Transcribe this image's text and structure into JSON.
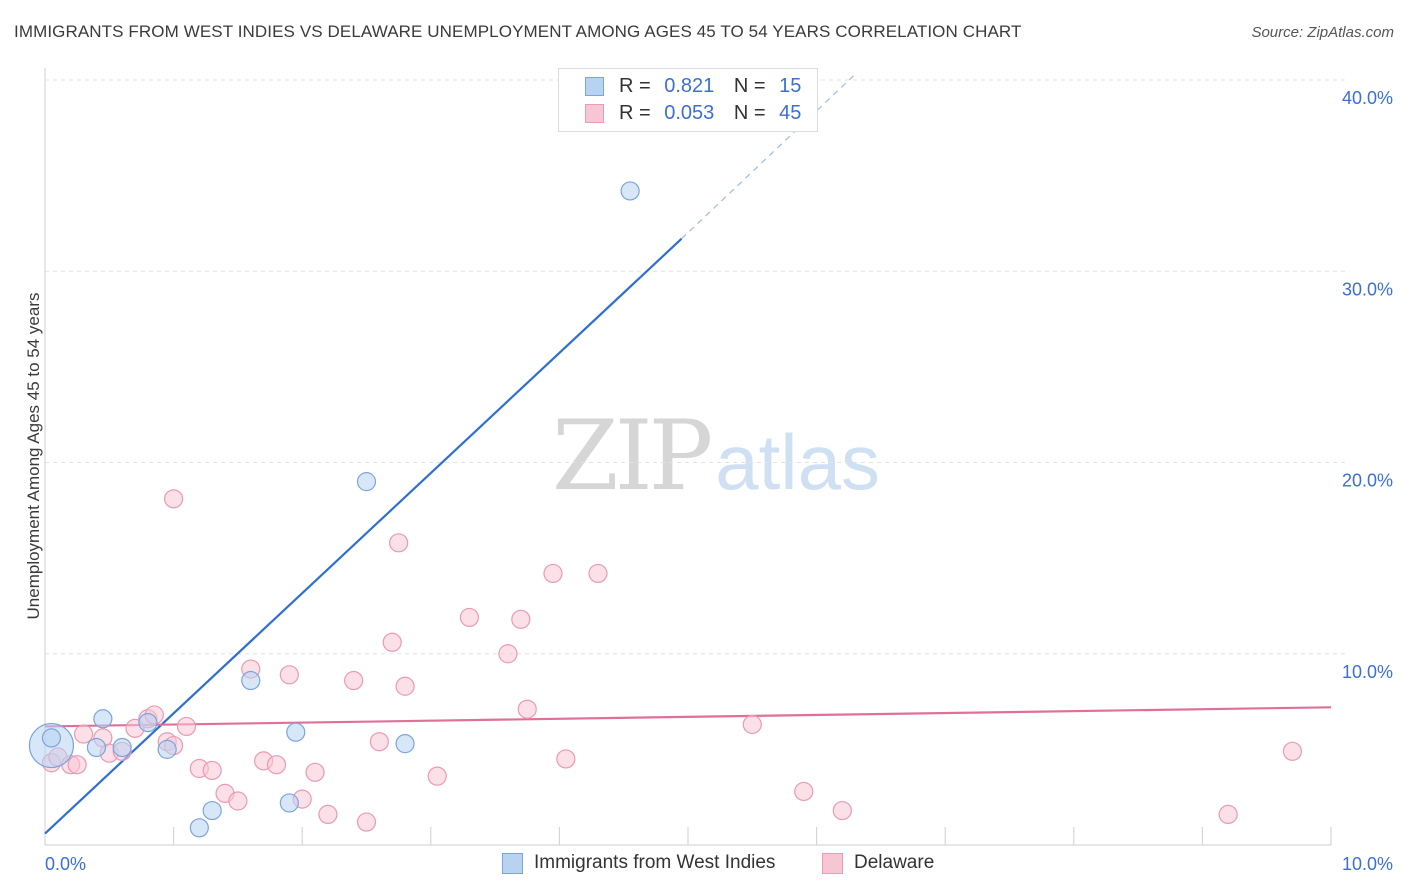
{
  "chart_data": {
    "type": "scatter",
    "title": "IMMIGRANTS FROM WEST INDIES VS DELAWARE UNEMPLOYMENT AMONG AGES 45 TO 54 YEARS CORRELATION CHART",
    "source": "Source: ZipAtlas.com",
    "xlabel": "",
    "ylabel": "Unemployment Among Ages 45 to 54 years",
    "xlim": [
      0,
      10
    ],
    "ylim": [
      0,
      40
    ],
    "x_tick_labels": [
      "0.0%",
      "10.0%"
    ],
    "y_tick_values": [
      10,
      20,
      30,
      40
    ],
    "y_tick_labels": [
      "10.0%",
      "20.0%",
      "30.0%",
      "40.0%"
    ],
    "grid": true,
    "legend_top": [
      {
        "swatch": "blue",
        "r_label": "R =",
        "r_value": "0.821",
        "n_label": "N =",
        "n_value": "15"
      },
      {
        "swatch": "pink",
        "r_label": "R =",
        "r_value": "0.053",
        "n_label": "N =",
        "n_value": "45"
      }
    ],
    "legend_bottom": [
      "Immigrants from West Indies",
      "Delaware"
    ],
    "watermark": {
      "zip": "ZIP",
      "atlas": "atlas"
    },
    "colors": {
      "blue_fill": "#b8d3f2",
      "blue_stroke": "#7aa5dc",
      "blue_line": "#2f6fd1",
      "pink_fill": "#f7c6d5",
      "pink_stroke": "#e99ab4",
      "pink_line": "#e0709a",
      "tick_label": "#3b6fd4",
      "grid": "#e3e3e3"
    },
    "series": [
      {
        "name": "Immigrants from West Indies",
        "color": "blue",
        "points": [
          [
            0.05,
            5.2,
            22
          ],
          [
            0.4,
            5.1,
            9
          ],
          [
            0.45,
            6.6,
            9
          ],
          [
            0.6,
            5.1,
            9
          ],
          [
            0.8,
            6.4,
            9
          ],
          [
            0.95,
            5.0,
            9
          ],
          [
            1.2,
            0.9,
            9
          ],
          [
            1.3,
            1.8,
            9
          ],
          [
            1.6,
            8.6,
            9
          ],
          [
            1.9,
            2.2,
            9
          ],
          [
            1.95,
            5.9,
            9
          ],
          [
            2.5,
            19.0,
            9
          ],
          [
            2.8,
            5.3,
            9
          ],
          [
            4.55,
            34.2,
            9
          ],
          [
            0.05,
            5.6,
            9
          ]
        ],
        "trendline": {
          "x0": 0.0,
          "y0": 0.6,
          "x1": 4.95,
          "y1": 31.7,
          "dash_x1": 6.3,
          "dash_y1": 40.3
        }
      },
      {
        "name": "Delaware",
        "color": "pink",
        "points": [
          [
            0.05,
            4.3,
            9
          ],
          [
            0.1,
            4.6,
            9
          ],
          [
            0.2,
            4.2,
            9
          ],
          [
            0.3,
            5.8,
            9
          ],
          [
            0.45,
            5.6,
            9
          ],
          [
            0.5,
            4.8,
            9
          ],
          [
            0.6,
            4.9,
            9
          ],
          [
            0.7,
            6.1,
            9
          ],
          [
            0.8,
            6.6,
            9
          ],
          [
            0.85,
            6.8,
            9
          ],
          [
            0.95,
            5.4,
            9
          ],
          [
            1.0,
            5.2,
            9
          ],
          [
            1.1,
            6.2,
            9
          ],
          [
            1.2,
            4.0,
            9
          ],
          [
            1.3,
            3.9,
            9
          ],
          [
            1.4,
            2.7,
            9
          ],
          [
            1.5,
            2.3,
            9
          ],
          [
            1.6,
            9.2,
            9
          ],
          [
            1.7,
            4.4,
            9
          ],
          [
            1.8,
            4.2,
            9
          ],
          [
            1.9,
            8.9,
            9
          ],
          [
            2.0,
            2.4,
            9
          ],
          [
            2.1,
            3.8,
            9
          ],
          [
            2.2,
            1.6,
            9
          ],
          [
            2.4,
            8.6,
            9
          ],
          [
            2.5,
            1.2,
            9
          ],
          [
            2.6,
            5.4,
            9
          ],
          [
            2.75,
            15.8,
            9
          ],
          [
            2.8,
            8.3,
            9
          ],
          [
            3.05,
            3.6,
            9
          ],
          [
            3.3,
            11.9,
            9
          ],
          [
            3.6,
            10.0,
            9
          ],
          [
            3.7,
            11.8,
            9
          ],
          [
            3.75,
            7.1,
            9
          ],
          [
            3.95,
            14.2,
            9
          ],
          [
            4.05,
            4.5,
            9
          ],
          [
            4.3,
            14.2,
            9
          ],
          [
            5.5,
            6.3,
            9
          ],
          [
            5.9,
            2.8,
            9
          ],
          [
            6.2,
            1.8,
            9
          ],
          [
            9.2,
            1.6,
            9
          ],
          [
            9.7,
            4.9,
            9
          ],
          [
            1.0,
            18.1,
            9
          ],
          [
            2.7,
            10.6,
            9
          ],
          [
            0.25,
            4.2,
            9
          ]
        ],
        "trendline": {
          "x0": 0.0,
          "y0": 6.2,
          "x1": 10.0,
          "y1": 7.2
        }
      }
    ]
  }
}
